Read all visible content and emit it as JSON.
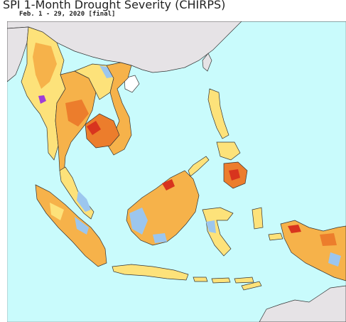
{
  "header": {
    "title": "SPI 1-Month Drought Severity (CHIRPS)",
    "subtitle": "Feb. 1 - 29, 2020 [final]"
  },
  "map": {
    "colors": {
      "ocean": "#c9fbfc",
      "land_neutral": "#ffffff",
      "out_of_region": "#e6e3e6",
      "border": "#333333",
      "abnormally_dry": "#fde27a",
      "moderate_drought": "#f6b24a",
      "severe_drought": "#ec7d2c",
      "extreme_drought": "#d8341e",
      "wet": "#9cc6ee",
      "very_wet": "#3f80d8",
      "exceptional_wet": "#a03cd8"
    }
  }
}
